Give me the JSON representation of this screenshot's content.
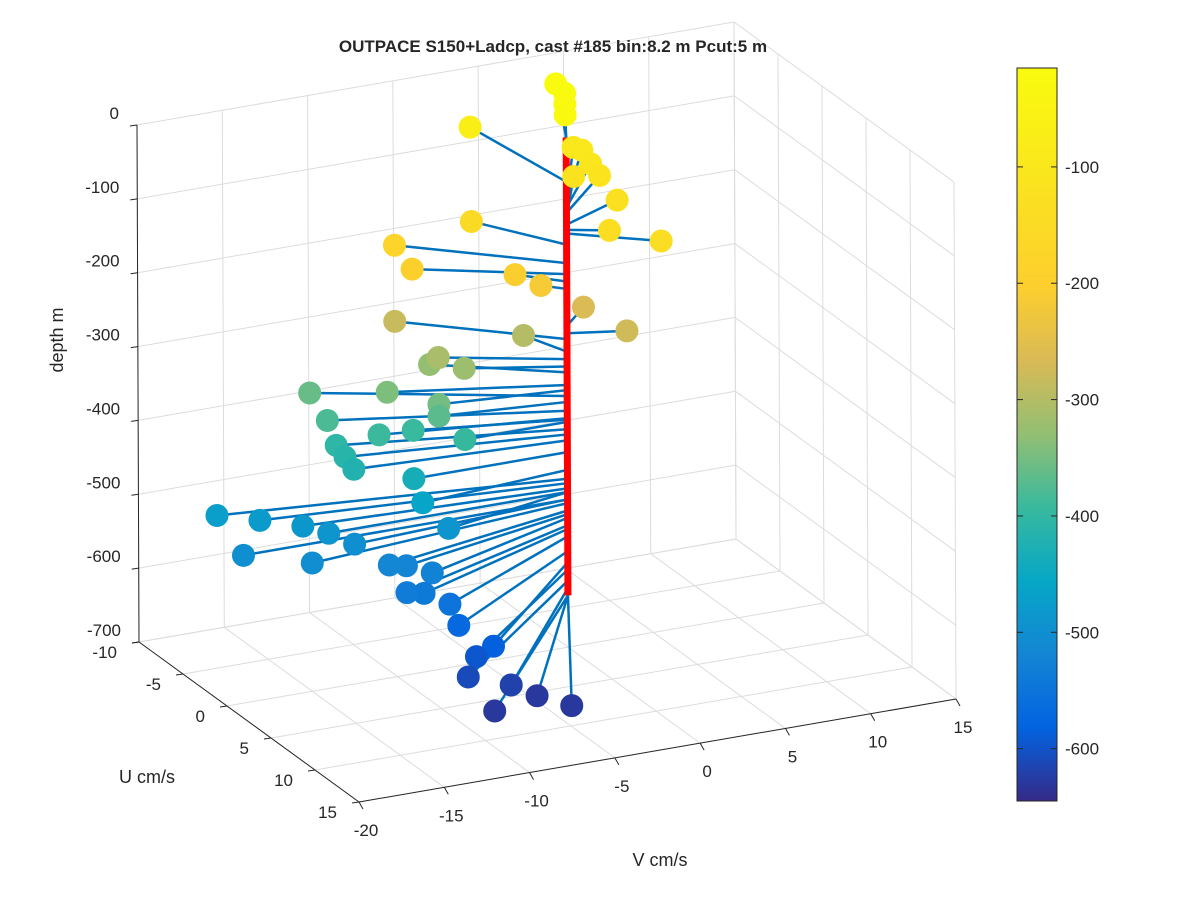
{
  "chart_data": {
    "type": "line3d",
    "title": "OUTPACE S150+Ladcp, cast #185 bin:8.2 m  Pcut:5 m",
    "xlabel": "V cm/s",
    "ylabel": "U cm/s",
    "zlabel": "depth m",
    "xlim": [
      -20,
      15
    ],
    "ylim": [
      -10,
      15
    ],
    "zlim": [
      -700,
      0
    ],
    "xticks": [
      "-20",
      "-15",
      "-10",
      "-5",
      "0",
      "5",
      "10",
      "15"
    ],
    "yticks": [
      "-10",
      "-5",
      "0",
      "5",
      "10",
      "15"
    ],
    "zticks": [
      "0",
      "-100",
      "-200",
      "-300",
      "-400",
      "-500",
      "-600",
      "-700"
    ],
    "grid": true,
    "colormap": "parula",
    "colorbar": {
      "range": [
        -645,
        -15
      ],
      "ticks": [
        "-100",
        "-200",
        "-300",
        "-400",
        "-500",
        "-600"
      ],
      "placement": "right"
    },
    "line_color": "#0072bd",
    "marker_color_encodes": "depth",
    "profile_color": "#ff0000",
    "profile_depth_range": [
      -630,
      -10
    ],
    "vectors": [
      {
        "u": -7,
        "v": 3,
        "depth": -10
      },
      {
        "u": -6,
        "v": 3,
        "depth": -14
      },
      {
        "u": -5,
        "v": 2.5,
        "depth": -18
      },
      {
        "u": -4,
        "v": 2,
        "depth": -22
      },
      {
        "u": -9,
        "v": -1,
        "depth": -70
      },
      {
        "u": -6,
        "v": 4,
        "depth": -95
      },
      {
        "u": -7,
        "v": 4,
        "depth": -100
      },
      {
        "u": -5,
        "v": 4,
        "depth": -105
      },
      {
        "u": -4,
        "v": 4,
        "depth": -112
      },
      {
        "u": -5,
        "v": 3,
        "depth": -118
      },
      {
        "u": -2,
        "v": 4,
        "depth": -128
      },
      {
        "u": 1,
        "v": 2,
        "depth": -135
      },
      {
        "u": 3,
        "v": 4,
        "depth": -140
      },
      {
        "u": -5,
        "v": -3,
        "depth": -155
      },
      {
        "u": -6,
        "v": -7,
        "depth": -180
      },
      {
        "u": -4,
        "v": -7,
        "depth": -195
      },
      {
        "u": -2,
        "v": -2,
        "depth": -205
      },
      {
        "u": -1,
        "v": -1,
        "depth": -215
      },
      {
        "u": -2,
        "v": 2,
        "depth": -265
      },
      {
        "u": 1,
        "v": 3,
        "depth": -275
      },
      {
        "u": -6,
        "v": -7,
        "depth": -283
      },
      {
        "u": -3,
        "v": -1,
        "depth": -300
      },
      {
        "u": -3,
        "v": -6,
        "depth": -310
      },
      {
        "u": -2,
        "v": -5,
        "depth": -320
      },
      {
        "u": -4,
        "v": -6,
        "depth": -328
      },
      {
        "u": -3,
        "v": -9,
        "depth": -345
      },
      {
        "u": -1,
        "v": -7,
        "depth": -352
      },
      {
        "u": -6,
        "v": -12,
        "depth": -360
      },
      {
        "u": -1,
        "v": -7,
        "depth": -368
      },
      {
        "u": -4,
        "v": -12,
        "depth": -380
      },
      {
        "u": -2,
        "v": -10,
        "depth": -390
      },
      {
        "u": -2,
        "v": -8,
        "depth": -392
      },
      {
        "u": 0,
        "v": -6,
        "depth": -395
      },
      {
        "u": -3,
        "v": -12,
        "depth": -405
      },
      {
        "u": -2,
        "v": -12,
        "depth": -412
      },
      {
        "u": -1,
        "v": -12,
        "depth": -420
      },
      {
        "u": 0,
        "v": -9,
        "depth": -436
      },
      {
        "u": 1,
        "v": -9,
        "depth": -460
      },
      {
        "u": -3,
        "v": -19,
        "depth": -472
      },
      {
        "u": -2,
        "v": -17,
        "depth": -478
      },
      {
        "u": -1,
        "v": -15,
        "depth": -485
      },
      {
        "u": 0,
        "v": -14,
        "depth": -490
      },
      {
        "u": 2,
        "v": -8,
        "depth": -490
      },
      {
        "u": 0,
        "v": -19,
        "depth": -500
      },
      {
        "u": 2,
        "v": -16,
        "depth": -505
      },
      {
        "u": 1,
        "v": -13,
        "depth": -500
      },
      {
        "u": 3,
        "v": -12,
        "depth": -515
      },
      {
        "u": 3,
        "v": -11,
        "depth": -520
      },
      {
        "u": 4,
        "v": -10,
        "depth": -525
      },
      {
        "u": 5,
        "v": -12,
        "depth": -535
      },
      {
        "u": 5,
        "v": -11,
        "depth": -540
      },
      {
        "u": 6,
        "v": -10,
        "depth": -550
      },
      {
        "u": 7,
        "v": -10,
        "depth": -570
      },
      {
        "u": 9,
        "v": -9,
        "depth": -585
      },
      {
        "u": 9,
        "v": -10,
        "depth": -595
      },
      {
        "u": 10,
        "v": -11,
        "depth": -610
      },
      {
        "u": 11,
        "v": -9,
        "depth": -620
      },
      {
        "u": 13,
        "v": -11,
        "depth": -630
      },
      {
        "u": 12,
        "v": -8,
        "depth": -630
      },
      {
        "u": 14,
        "v": -7,
        "depth": -630
      }
    ]
  }
}
